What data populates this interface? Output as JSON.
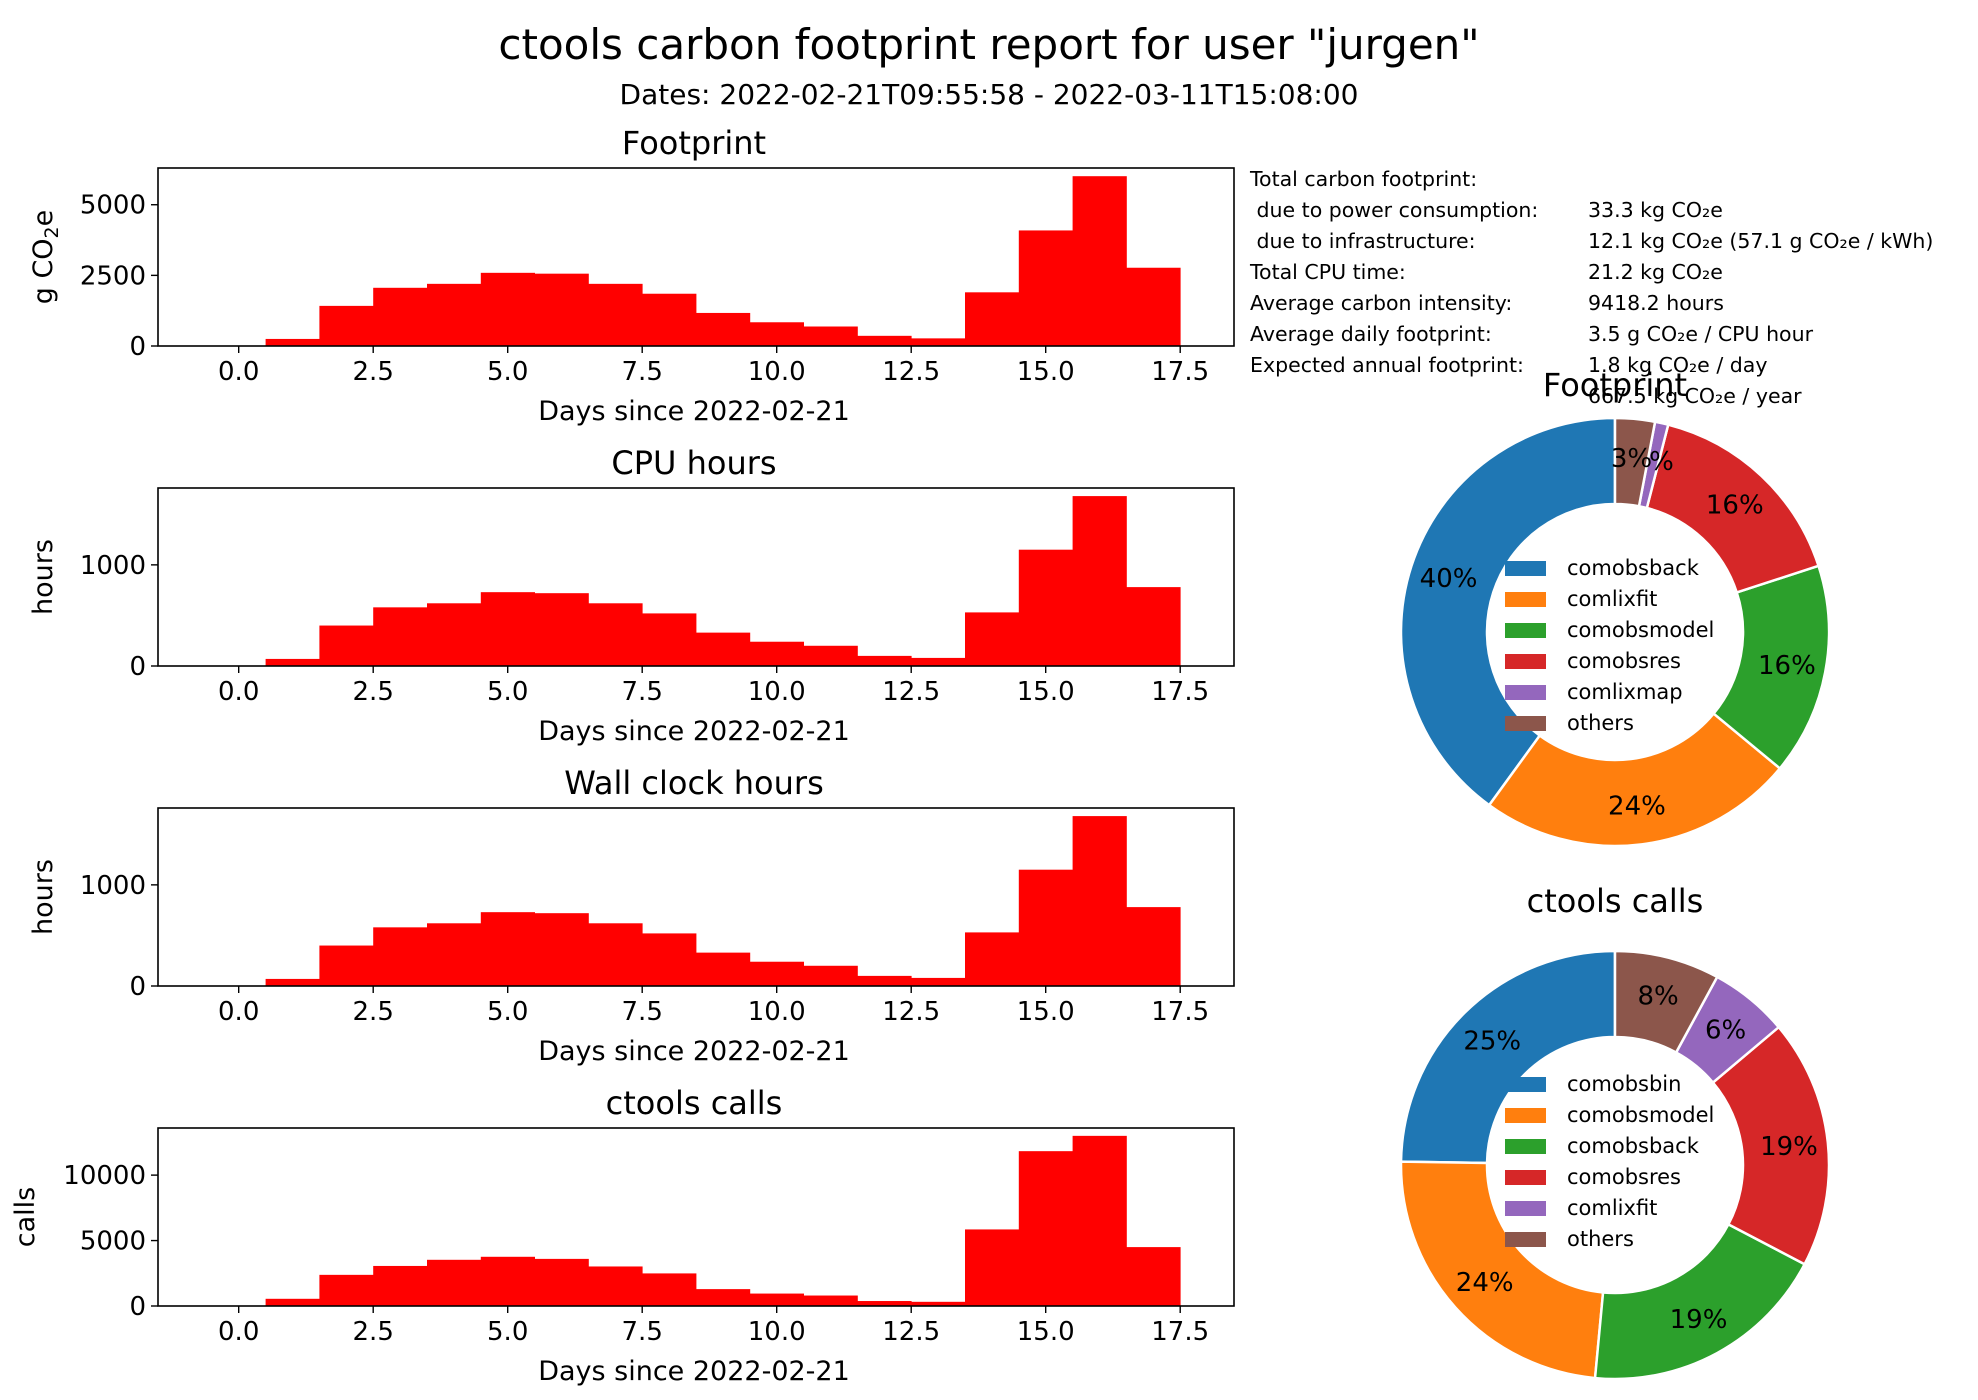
{
  "figure": {
    "title": "ctools carbon footprint report for user \"jurgen\"",
    "subtitle": "Dates: 2022-02-21T09:55:58 - 2022-03-11T15:08:00"
  },
  "summary": [
    {
      "label": "Total carbon footprint:",
      "value": "33.3 kg CO₂e"
    },
    {
      "label": " due to power consumption:",
      "value": "12.1 kg CO₂e (57.1 g CO₂e / kWh)"
    },
    {
      "label": " due to infrastructure:",
      "value": "21.2 kg CO₂e"
    },
    {
      "label": "Total CPU time:",
      "value": "9418.2 hours"
    },
    {
      "label": "Average carbon intensity:",
      "value": "3.5 g CO₂e / CPU hour"
    },
    {
      "label": "Average daily footprint:",
      "value": "1.8 kg CO₂e / day"
    },
    {
      "label": "Expected annual footprint:",
      "value": "667.5 kg CO₂e / year"
    }
  ],
  "colors": {
    "bar": "#ff0000",
    "pie": [
      "#1f77b4",
      "#ff7f0e",
      "#2ca02c",
      "#d62728",
      "#9467bd",
      "#8c564b"
    ]
  },
  "chart_data": [
    {
      "type": "bar",
      "title": "Footprint",
      "xlabel": "Days since 2022-02-21",
      "ylabel": "g CO₂e",
      "xlim": [
        -1.5,
        18.5
      ],
      "ylim": [
        0,
        6300
      ],
      "xticks": [
        {
          "v": 0,
          "t": "0.0"
        },
        {
          "v": 2.5,
          "t": "2.5"
        },
        {
          "v": 5,
          "t": "5.0"
        },
        {
          "v": 7.5,
          "t": "7.5"
        },
        {
          "v": 10,
          "t": "10.0"
        },
        {
          "v": 12.5,
          "t": "12.5"
        },
        {
          "v": 15,
          "t": "15.0"
        },
        {
          "v": 17.5,
          "t": "17.5"
        }
      ],
      "yticks": [
        {
          "v": 0,
          "t": "0"
        },
        {
          "v": 2500,
          "t": "2500"
        },
        {
          "v": 5000,
          "t": "5000"
        }
      ],
      "x": [
        0,
        1,
        2,
        3,
        4,
        5,
        6,
        7,
        8,
        9,
        10,
        11,
        12,
        13,
        14,
        15,
        16,
        17
      ],
      "values": [
        0,
        250,
        1420,
        2060,
        2200,
        2590,
        2560,
        2200,
        1850,
        1170,
        840,
        690,
        360,
        270,
        1900,
        4090,
        6010,
        2770
      ]
    },
    {
      "type": "bar",
      "title": "CPU hours",
      "xlabel": "Days since 2022-02-21",
      "ylabel": "hours",
      "xlim": [
        -1.5,
        18.5
      ],
      "ylim": [
        0,
        1760
      ],
      "xticks": [
        {
          "v": 0,
          "t": "0.0"
        },
        {
          "v": 2.5,
          "t": "2.5"
        },
        {
          "v": 5,
          "t": "5.0"
        },
        {
          "v": 7.5,
          "t": "7.5"
        },
        {
          "v": 10,
          "t": "10.0"
        },
        {
          "v": 12.5,
          "t": "12.5"
        },
        {
          "v": 15,
          "t": "15.0"
        },
        {
          "v": 17.5,
          "t": "17.5"
        }
      ],
      "yticks": [
        {
          "v": 0,
          "t": "0"
        },
        {
          "v": 1000,
          "t": "1000"
        }
      ],
      "x": [
        0,
        1,
        2,
        3,
        4,
        5,
        6,
        7,
        8,
        9,
        10,
        11,
        12,
        13,
        14,
        15,
        16,
        17
      ],
      "values": [
        0,
        70,
        400,
        580,
        620,
        730,
        720,
        620,
        520,
        330,
        240,
        200,
        100,
        80,
        530,
        1150,
        1680,
        780
      ]
    },
    {
      "type": "bar",
      "title": "Wall clock hours",
      "xlabel": "Days since 2022-02-21",
      "ylabel": "hours",
      "xlim": [
        -1.5,
        18.5
      ],
      "ylim": [
        0,
        1760
      ],
      "xticks": [
        {
          "v": 0,
          "t": "0.0"
        },
        {
          "v": 2.5,
          "t": "2.5"
        },
        {
          "v": 5,
          "t": "5.0"
        },
        {
          "v": 7.5,
          "t": "7.5"
        },
        {
          "v": 10,
          "t": "10.0"
        },
        {
          "v": 12.5,
          "t": "12.5"
        },
        {
          "v": 15,
          "t": "15.0"
        },
        {
          "v": 17.5,
          "t": "17.5"
        }
      ],
      "yticks": [
        {
          "v": 0,
          "t": "0"
        },
        {
          "v": 1000,
          "t": "1000"
        }
      ],
      "x": [
        0,
        1,
        2,
        3,
        4,
        5,
        6,
        7,
        8,
        9,
        10,
        11,
        12,
        13,
        14,
        15,
        16,
        17
      ],
      "values": [
        0,
        70,
        400,
        580,
        620,
        730,
        720,
        620,
        520,
        330,
        240,
        200,
        100,
        80,
        530,
        1150,
        1680,
        780
      ]
    },
    {
      "type": "bar",
      "title": "ctools calls",
      "xlabel": "Days since 2022-02-21",
      "ylabel": "calls",
      "xlim": [
        -1.5,
        18.5
      ],
      "ylim": [
        0,
        13600
      ],
      "xticks": [
        {
          "v": 0,
          "t": "0.0"
        },
        {
          "v": 2.5,
          "t": "2.5"
        },
        {
          "v": 5,
          "t": "5.0"
        },
        {
          "v": 7.5,
          "t": "7.5"
        },
        {
          "v": 10,
          "t": "10.0"
        },
        {
          "v": 12.5,
          "t": "12.5"
        },
        {
          "v": 15,
          "t": "15.0"
        },
        {
          "v": 17.5,
          "t": "17.5"
        }
      ],
      "yticks": [
        {
          "v": 0,
          "t": "0"
        },
        {
          "v": 5000,
          "t": "5000"
        },
        {
          "v": 10000,
          "t": "10000"
        }
      ],
      "x": [
        0,
        1,
        2,
        3,
        4,
        5,
        6,
        7,
        8,
        9,
        10,
        11,
        12,
        13,
        14,
        15,
        16,
        17
      ],
      "values": [
        0,
        550,
        2380,
        3060,
        3530,
        3760,
        3600,
        3020,
        2490,
        1290,
        950,
        800,
        380,
        320,
        5850,
        11830,
        13000,
        4500
      ]
    },
    {
      "type": "pie",
      "title": "Footprint",
      "labels": [
        "comobsback",
        "comlixfit",
        "comobsmodel",
        "comobsres",
        "comlixmap",
        "others"
      ],
      "values": [
        40,
        24,
        16,
        16,
        1,
        3
      ],
      "pct_labels": [
        "40%",
        "24%",
        "16%",
        "16%",
        "1%",
        "3%"
      ],
      "legend": "center"
    },
    {
      "type": "pie",
      "title": "ctools calls",
      "labels": [
        "comobsbin",
        "comobsmodel",
        "comobsback",
        "comobsres",
        "comlixfit",
        "others"
      ],
      "values": [
        25,
        24,
        19,
        19,
        6,
        8
      ],
      "pct_labels": [
        "25%",
        "24%",
        "19%",
        "19%",
        "6%",
        "8%"
      ],
      "legend": "center"
    }
  ]
}
